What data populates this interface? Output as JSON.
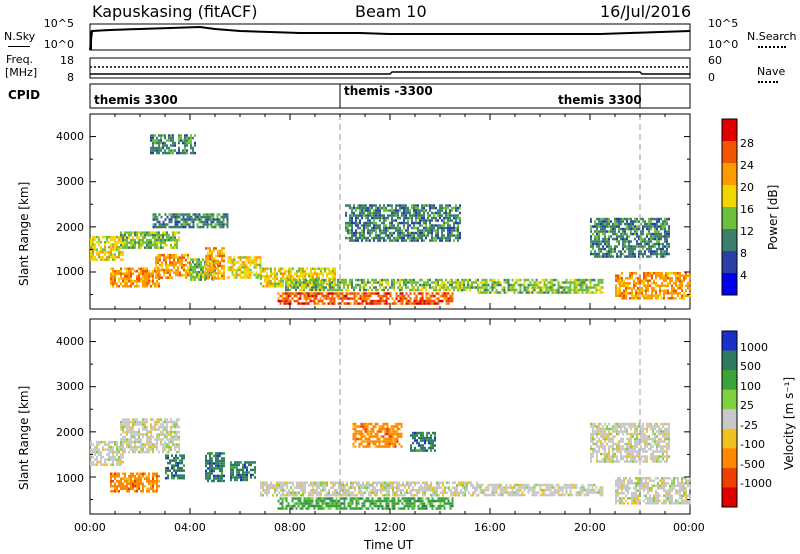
{
  "header": {
    "radar_title": "Kapuskasing (fitACF)",
    "beam_title": "Beam 10",
    "date_title": "16/Jul/2016"
  },
  "summary": {
    "nsky_label": "N.Sky",
    "nsky_ticks": [
      "10^5",
      "10^0"
    ],
    "nsearch_label": "N.Search",
    "nsearch_ticks": [
      "10^5",
      "10^0"
    ],
    "freq_label": "Freq.",
    "freq_unit": "[MHz]",
    "freq_ticks": [
      "18",
      "8"
    ],
    "nave_label": "Nave",
    "nave_ticks": [
      "60",
      "0"
    ],
    "cpid_label": "CPID",
    "cpid_segments": [
      {
        "name": "themis 3300",
        "start_hour": 0,
        "end_hour": 10
      },
      {
        "name": "themis -3300",
        "start_hour": 10,
        "end_hour": 22
      },
      {
        "name": "themis 3300",
        "start_hour": 22,
        "end_hour": 24
      }
    ]
  },
  "axes": {
    "x_label": "Time UT",
    "x_ticks": [
      "00:00",
      "04:00",
      "08:00",
      "12:00",
      "16:00",
      "20:00",
      "00:00"
    ],
    "y_label": "Slant Range [km]",
    "y_ticks": [
      "1000",
      "2000",
      "3000",
      "4000"
    ]
  },
  "power_colorbar": {
    "label": "Power [dB]",
    "ticks": [
      "4",
      "8",
      "12",
      "16",
      "20",
      "24",
      "28"
    ],
    "colors": [
      "#0000ee",
      "#2b3fa8",
      "#3a7f6a",
      "#6bbf3a",
      "#f1d600",
      "#ff9a00",
      "#f25500",
      "#e00000"
    ]
  },
  "velocity_colorbar": {
    "label": "Velocity [m s⁻¹]",
    "ticks": [
      "1000",
      "500",
      "100",
      "25",
      "-25",
      "-100",
      "-500",
      "-1000"
    ],
    "colors": [
      "#1b30c8",
      "#2d7a5e",
      "#3aa33a",
      "#7ed23e",
      "#c8c8c8",
      "#f0c020",
      "#ff8800",
      "#f04000",
      "#e00000"
    ]
  },
  "chart_data": {
    "type": "heatmap",
    "x_range_hours": [
      0,
      24
    ],
    "y_range_km": [
      180,
      4500
    ],
    "cpid_change_hours": [
      10,
      22
    ],
    "power_db": [
      {
        "t_start": 0.0,
        "t_end": 1.3,
        "r_min": 1300,
        "r_max": 1800,
        "value": 14
      },
      {
        "t_start": 0.8,
        "t_end": 2.8,
        "r_min": 700,
        "r_max": 1100,
        "value": 18
      },
      {
        "t_start": 1.2,
        "t_end": 3.6,
        "r_min": 1550,
        "r_max": 1900,
        "value": 13
      },
      {
        "t_start": 2.5,
        "t_end": 5.5,
        "r_min": 2000,
        "r_max": 2300,
        "value": 8
      },
      {
        "t_start": 2.6,
        "t_end": 4.0,
        "r_min": 900,
        "r_max": 1400,
        "value": 19
      },
      {
        "t_start": 4.0,
        "t_end": 5.0,
        "r_min": 850,
        "r_max": 1300,
        "value": 12
      },
      {
        "t_start": 4.6,
        "t_end": 5.4,
        "r_min": 850,
        "r_max": 1550,
        "value": 21
      },
      {
        "t_start": 5.5,
        "t_end": 6.8,
        "r_min": 900,
        "r_max": 1350,
        "value": 17
      },
      {
        "t_start": 6.8,
        "t_end": 9.8,
        "r_min": 700,
        "r_max": 1100,
        "value": 15
      },
      {
        "t_start": 7.8,
        "t_end": 15.5,
        "r_min": 600,
        "r_max": 850,
        "value": 12
      },
      {
        "t_start": 7.5,
        "t_end": 14.5,
        "r_min": 300,
        "r_max": 550,
        "value": 22
      },
      {
        "t_start": 2.4,
        "t_end": 4.2,
        "r_min": 3650,
        "r_max": 4050,
        "value": 6
      },
      {
        "t_start": 10.2,
        "t_end": 14.8,
        "r_min": 1700,
        "r_max": 2500,
        "value": 6
      },
      {
        "t_start": 15.5,
        "t_end": 20.5,
        "r_min": 550,
        "r_max": 850,
        "value": 10
      },
      {
        "t_start": 20.0,
        "t_end": 23.2,
        "r_min": 1350,
        "r_max": 2200,
        "value": 8
      },
      {
        "t_start": 21.0,
        "t_end": 24.0,
        "r_min": 400,
        "r_max": 1000,
        "value": 20
      }
    ],
    "velocity_ms": [
      {
        "t_start": 0.0,
        "t_end": 1.3,
        "r_min": 1300,
        "r_max": 1800,
        "value": 0
      },
      {
        "t_start": 0.8,
        "t_end": 2.8,
        "r_min": 700,
        "r_max": 1100,
        "value": -150
      },
      {
        "t_start": 1.2,
        "t_end": 3.6,
        "r_min": 1550,
        "r_max": 2300,
        "value": 0
      },
      {
        "t_start": 3.0,
        "t_end": 3.8,
        "r_min": 1000,
        "r_max": 1500,
        "value": 500
      },
      {
        "t_start": 4.6,
        "t_end": 5.4,
        "r_min": 900,
        "r_max": 1550,
        "value": 400
      },
      {
        "t_start": 5.6,
        "t_end": 6.6,
        "r_min": 950,
        "r_max": 1350,
        "value": 300
      },
      {
        "t_start": 6.8,
        "t_end": 15.5,
        "r_min": 600,
        "r_max": 900,
        "value": 0
      },
      {
        "t_start": 7.5,
        "t_end": 14.5,
        "r_min": 300,
        "r_max": 550,
        "value": 100
      },
      {
        "t_start": 10.5,
        "t_end": 12.5,
        "r_min": 1700,
        "r_max": 2200,
        "value": -200
      },
      {
        "t_start": 12.8,
        "t_end": 13.8,
        "r_min": 1600,
        "r_max": 2000,
        "value": 300
      },
      {
        "t_start": 15.5,
        "t_end": 20.5,
        "r_min": 600,
        "r_max": 850,
        "value": 0
      },
      {
        "t_start": 20.0,
        "t_end": 23.2,
        "r_min": 1350,
        "r_max": 2200,
        "value": 0
      },
      {
        "t_start": 21.0,
        "t_end": 24.0,
        "r_min": 400,
        "r_max": 1000,
        "value": 0
      }
    ]
  }
}
